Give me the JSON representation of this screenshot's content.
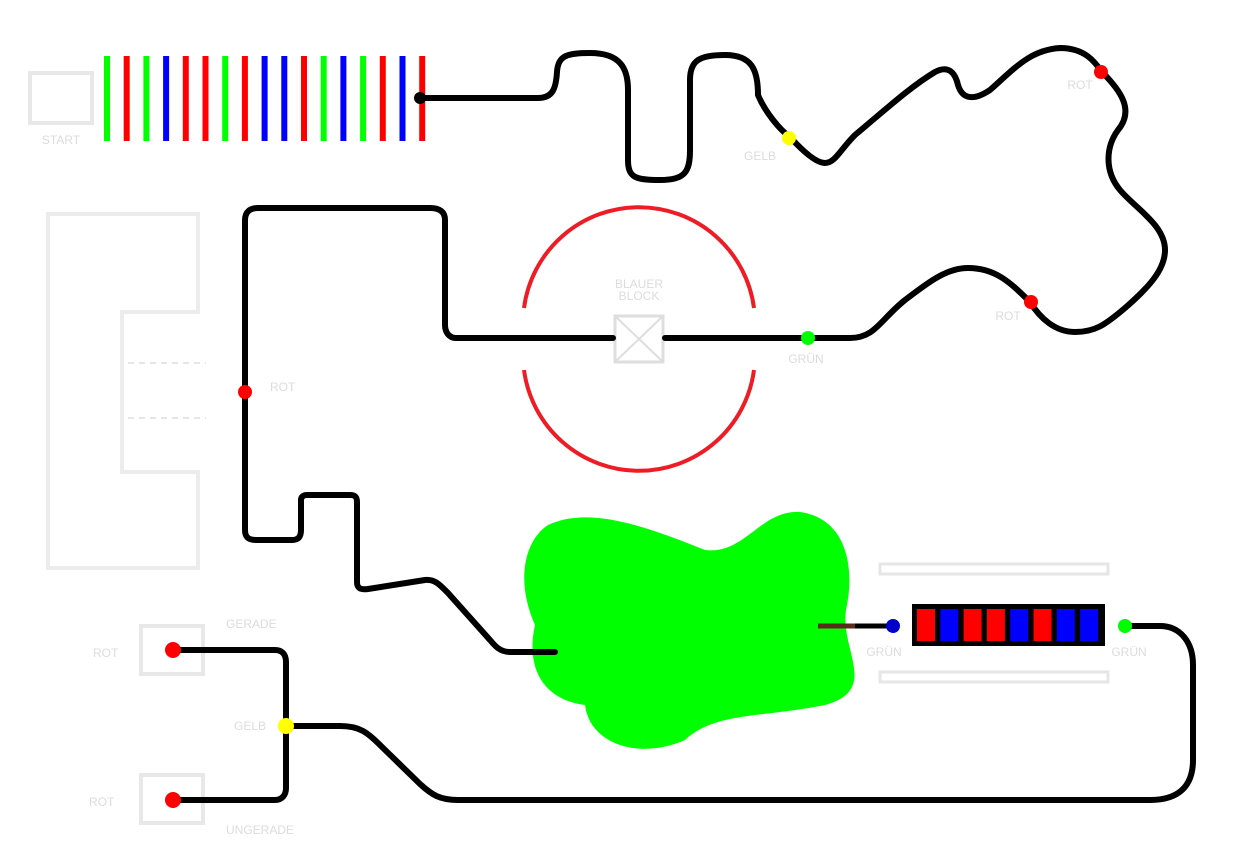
{
  "labels": {
    "start": "START",
    "blauer_block_line1": "BLAUER",
    "blauer_block_line2": "BLOCK",
    "gerade": "GERADE",
    "ungerade": "UNGERADE"
  },
  "colors": {
    "red": "#ff0000",
    "green": "#00ff00",
    "blue": "#0000ff",
    "yellow": "#ffff00",
    "track": "#000000",
    "zone_outline": "#ececec",
    "circle": "#ee1c24",
    "blue_marker": "#0000cc",
    "brown_connector": "#5a2d1a"
  },
  "start_stripes": [
    "green",
    "red",
    "green",
    "blue",
    "red",
    "red",
    "green",
    "red",
    "blue",
    "blue",
    "red",
    "green",
    "blue",
    "green",
    "red",
    "blue",
    "red"
  ],
  "bar_cells": [
    "red",
    "blue",
    "red",
    "red",
    "blue",
    "red",
    "blue",
    "blue"
  ],
  "markers": [
    {
      "color": "yellow",
      "label": "GELB"
    },
    {
      "color": "red",
      "label": "ROT"
    },
    {
      "color": "red",
      "label": "ROT"
    },
    {
      "color": "green",
      "label": "GRÜN"
    },
    {
      "color": "red",
      "label": "ROT"
    },
    {
      "color": "blue",
      "label": "GRÜN"
    },
    {
      "color": "green",
      "label": "GRÜN"
    },
    {
      "color": "red",
      "label": "ROT"
    },
    {
      "color": "red",
      "label": "ROT"
    },
    {
      "color": "yellow",
      "label": "GELB"
    }
  ]
}
